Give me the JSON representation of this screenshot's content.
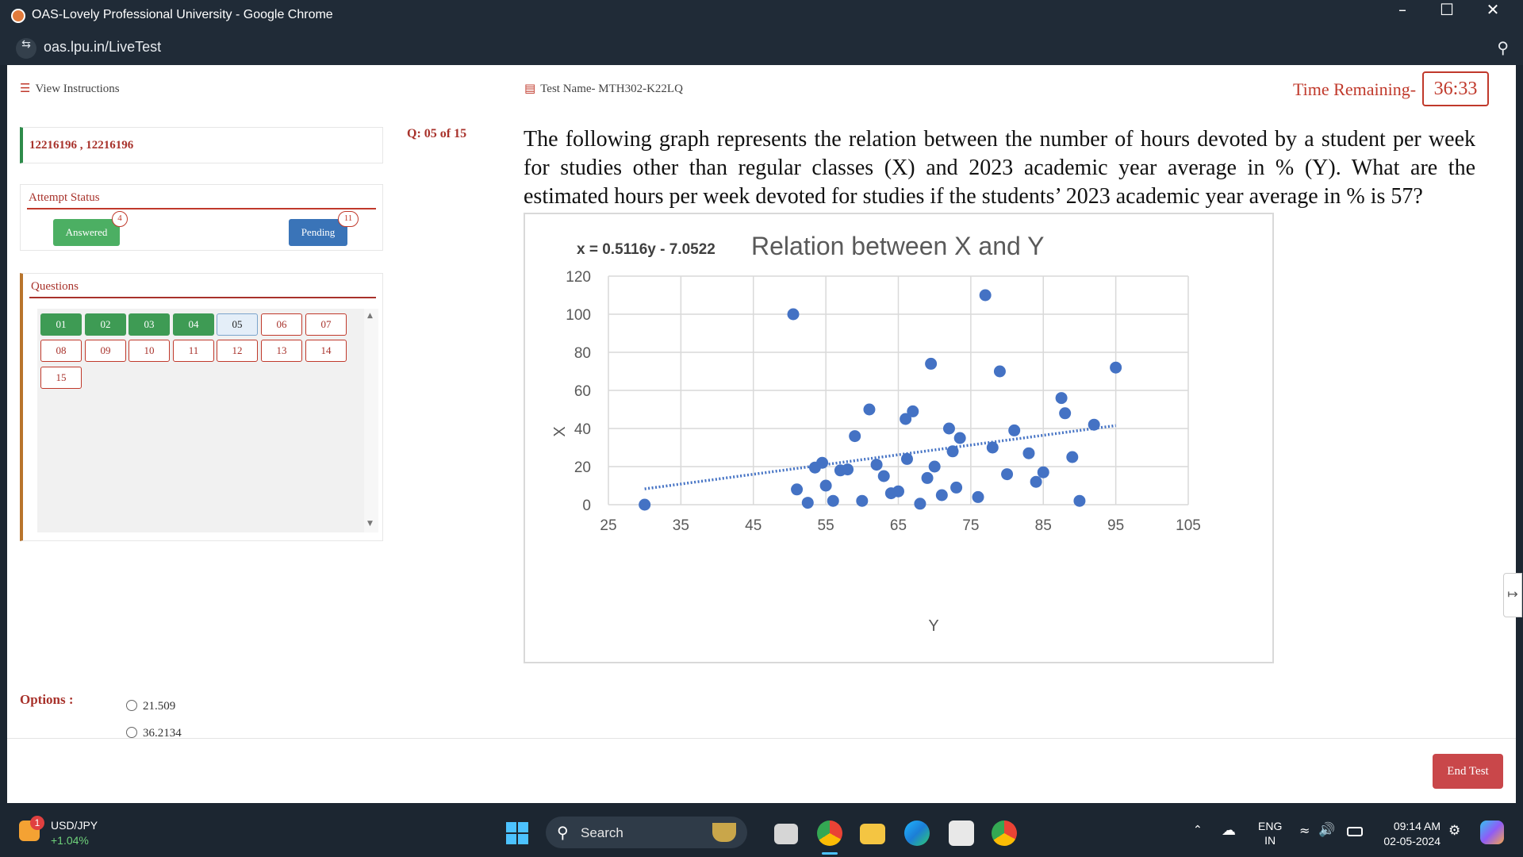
{
  "window": {
    "title": "OAS-Lovely Professional University - Google Chrome",
    "url": "oas.lpu.in/LiveTest",
    "minimize_icon": "minimize-icon",
    "maximize_icon": "maximize-icon",
    "close_icon": "close-icon"
  },
  "header": {
    "view_instructions": "View Instructions",
    "test_name": "Test Name- MTH302-K22LQ",
    "time_label": "Time Remaining-",
    "time_value": "36:33"
  },
  "sidebar": {
    "student_id": "12216196 , 12216196",
    "attempt_title": "Attempt Status",
    "answered_label": "Answered",
    "answered_count": "4",
    "pending_label": "Pending",
    "pending_count": "11",
    "questions_title": "Questions",
    "questions": [
      {
        "label": "01",
        "state": "answered"
      },
      {
        "label": "02",
        "state": "answered"
      },
      {
        "label": "03",
        "state": "answered"
      },
      {
        "label": "04",
        "state": "answered"
      },
      {
        "label": "05",
        "state": "current"
      },
      {
        "label": "06",
        "state": "pending"
      },
      {
        "label": "07",
        "state": "pending"
      },
      {
        "label": "08",
        "state": "pending"
      },
      {
        "label": "09",
        "state": "pending"
      },
      {
        "label": "10",
        "state": "pending"
      },
      {
        "label": "11",
        "state": "pending"
      },
      {
        "label": "12",
        "state": "pending"
      },
      {
        "label": "13",
        "state": "pending"
      },
      {
        "label": "14",
        "state": "pending"
      },
      {
        "label": "15",
        "state": "pending"
      }
    ]
  },
  "question": {
    "number": "Q: 05 of 15",
    "text": "The following graph represents the relation between the number of hours devoted by a student per week for studies other than regular classes (X) and 2023 academic year average in % (Y). What are the estimated hours per week devoted for studies if the students’ 2023 academic year average in % is 57?"
  },
  "chart_data": {
    "type": "scatter",
    "title": "Relation between X and Y",
    "equation": "x = 0.5116y - 7.0522",
    "xlabel": "Y",
    "ylabel": "X",
    "xlim": [
      25,
      105
    ],
    "ylim": [
      0,
      120
    ],
    "xticks": [
      "25",
      "35",
      "45",
      "55",
      "65",
      "75",
      "85",
      "95",
      "105"
    ],
    "yticks": [
      "0",
      "20",
      "40",
      "60",
      "80",
      "100",
      "120"
    ],
    "grid": true,
    "trendline": {
      "style": "dotted",
      "slope": 0.5116,
      "intercept": -7.0522,
      "x_from": 30,
      "x_to": 95
    },
    "colors": {
      "point": "#4472c4",
      "grid": "#d9d9d9",
      "text": "#595959"
    },
    "points": [
      [
        30,
        0
      ],
      [
        50.5,
        100
      ],
      [
        51,
        8
      ],
      [
        52.5,
        1
      ],
      [
        53.5,
        19.5
      ],
      [
        54.5,
        22
      ],
      [
        55,
        10
      ],
      [
        56,
        2
      ],
      [
        57,
        18
      ],
      [
        58,
        18.5
      ],
      [
        59,
        36
      ],
      [
        60,
        2
      ],
      [
        61,
        50
      ],
      [
        62,
        21
      ],
      [
        63,
        15
      ],
      [
        64,
        6
      ],
      [
        65,
        7
      ],
      [
        66,
        45
      ],
      [
        66.2,
        24
      ],
      [
        67,
        49
      ],
      [
        68,
        0.5
      ],
      [
        69,
        14
      ],
      [
        69.5,
        74
      ],
      [
        70,
        20
      ],
      [
        71,
        5
      ],
      [
        72,
        40
      ],
      [
        72.5,
        28
      ],
      [
        73,
        9
      ],
      [
        73.5,
        35
      ],
      [
        76,
        4
      ],
      [
        77,
        110
      ],
      [
        78,
        30
      ],
      [
        79,
        70
      ],
      [
        80,
        16
      ],
      [
        81,
        39
      ],
      [
        83,
        27
      ],
      [
        84,
        12
      ],
      [
        85,
        17
      ],
      [
        87.5,
        56
      ],
      [
        88,
        48
      ],
      [
        89,
        25
      ],
      [
        90,
        2
      ],
      [
        92,
        42
      ],
      [
        95,
        72
      ]
    ]
  },
  "options": {
    "label": "Options :",
    "items": [
      "21.509",
      "36.2134"
    ]
  },
  "footer": {
    "end_test": "End Test"
  },
  "taskbar": {
    "widget_badge": "1",
    "widget_title": "USD/JPY",
    "widget_change": "+1.04%",
    "search": "Search",
    "lang_top": "ENG",
    "lang_bottom": "IN",
    "time": "09:14 AM",
    "date": "02-05-2024"
  }
}
